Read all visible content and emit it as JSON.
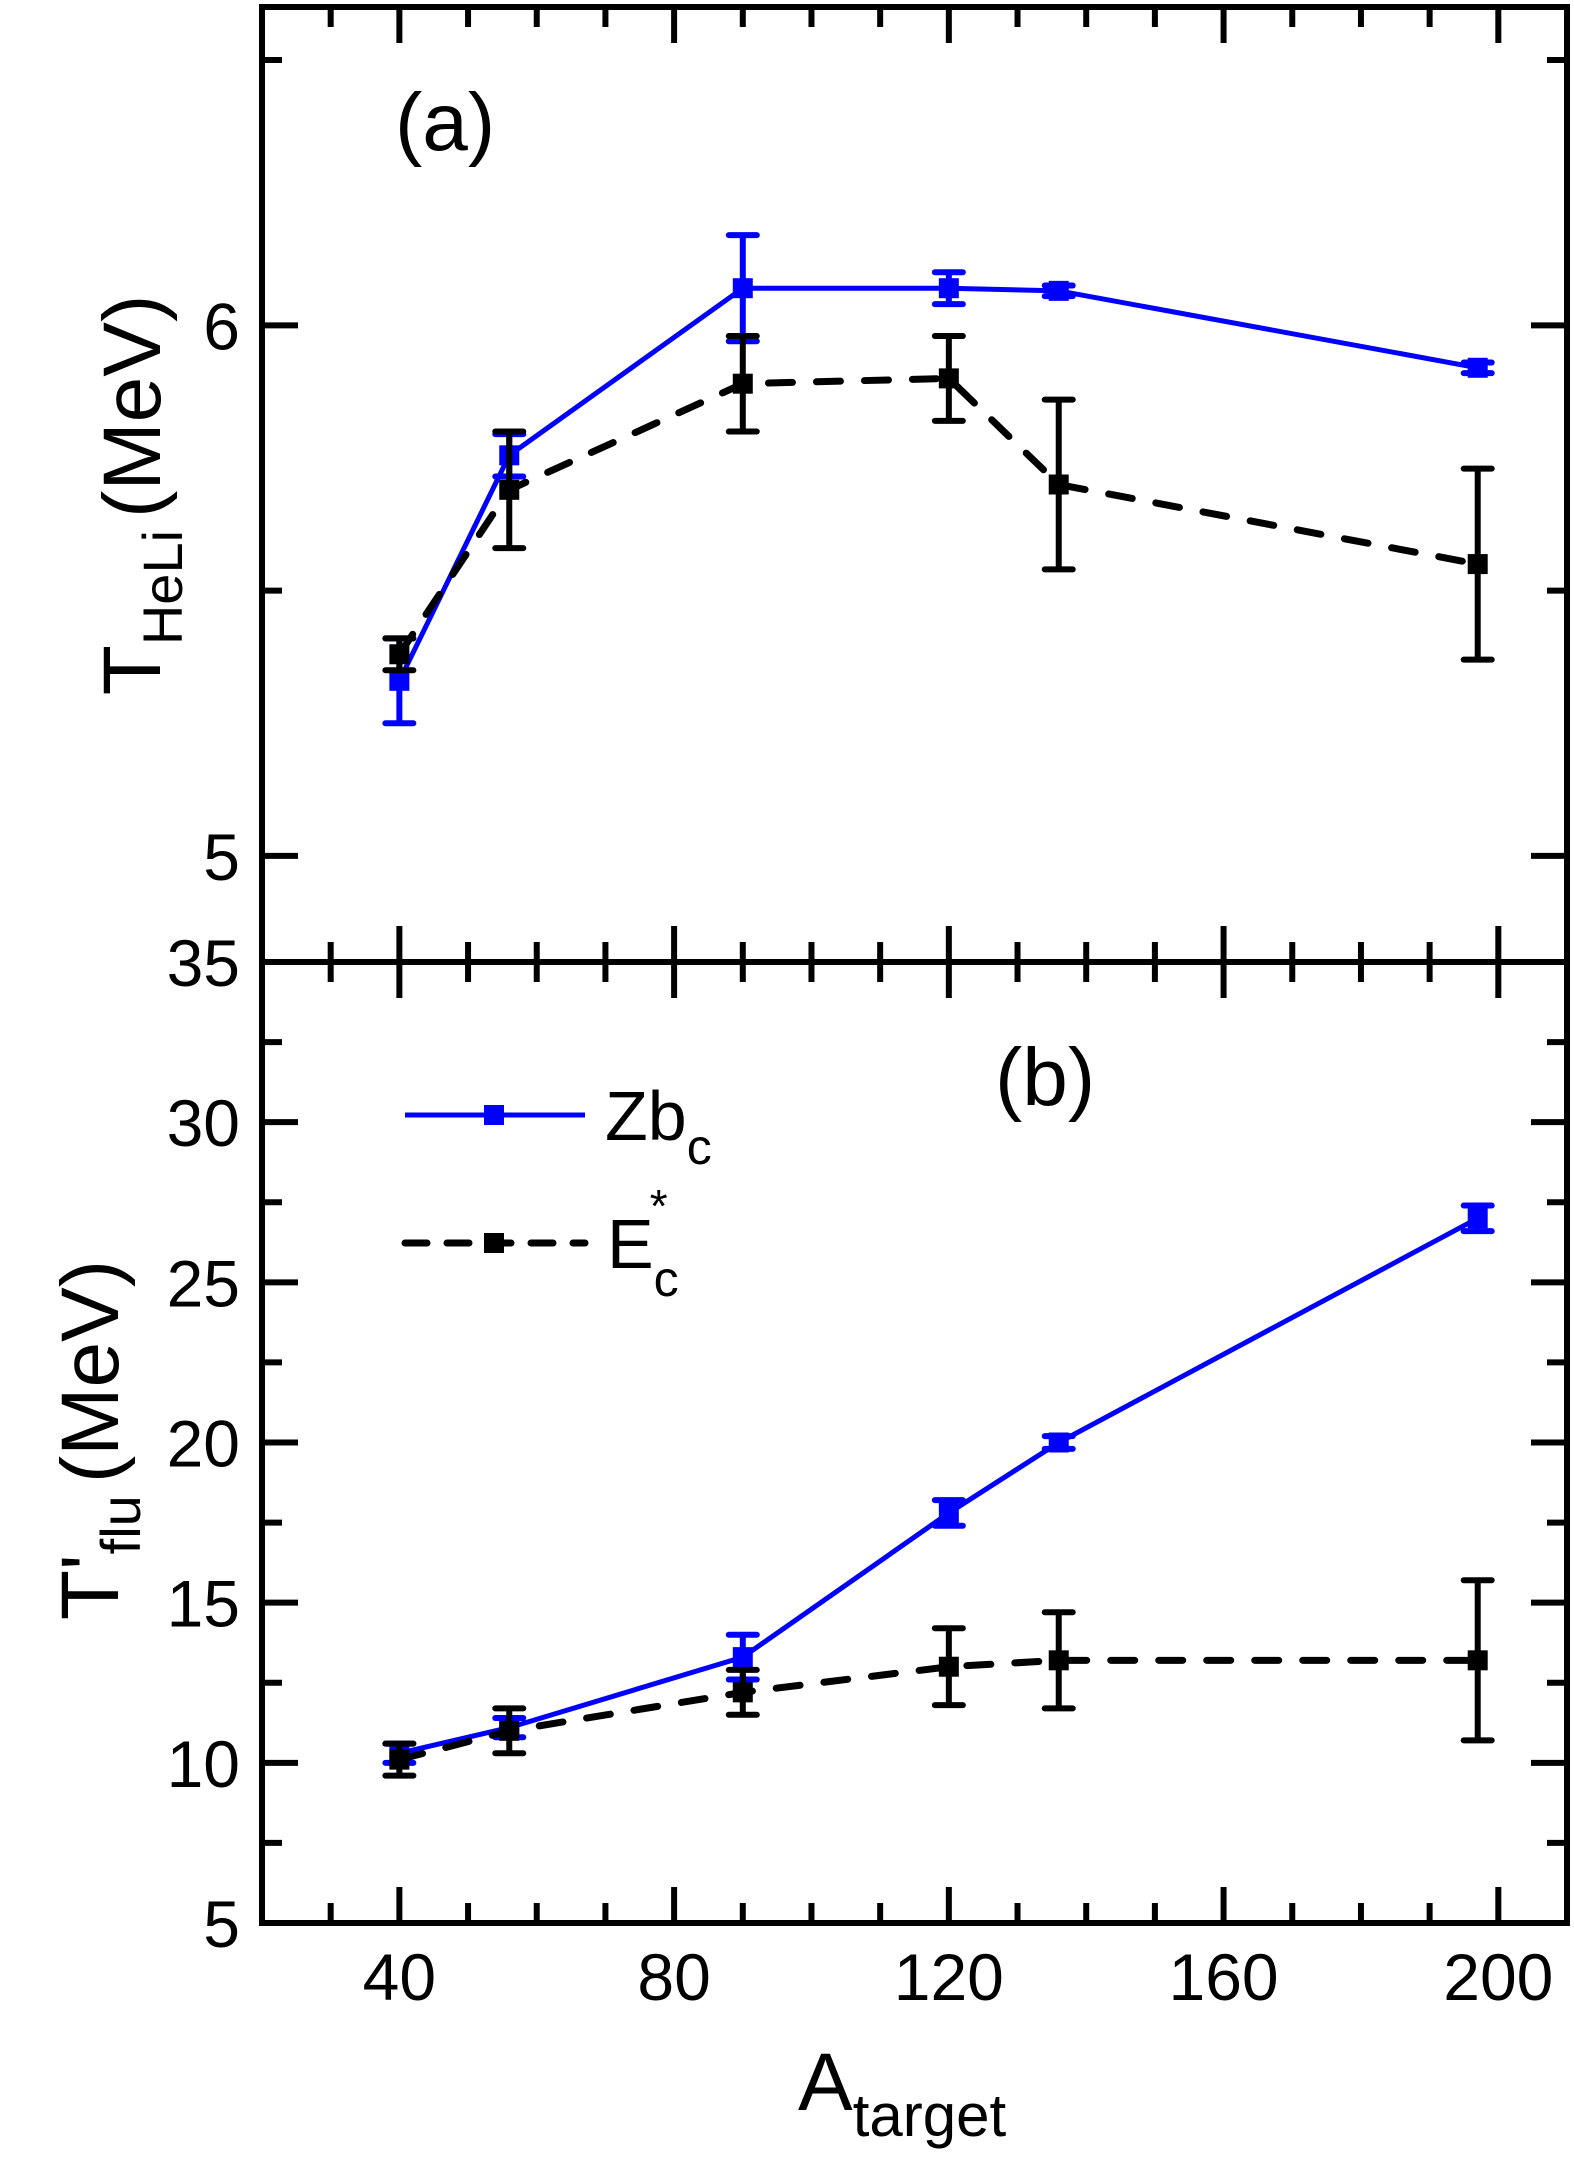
{
  "chart_data": [
    {
      "type": "line",
      "panel_label": "(a)",
      "ylabel": {
        "main": "T",
        "sub": "HeLi",
        "unit": "(MeV)"
      },
      "xlim": [
        20,
        210
      ],
      "ylim": [
        4.8,
        6.6
      ],
      "yticks": [
        5,
        6
      ],
      "yminor": [
        5.5,
        6.5
      ],
      "ytick_labels": [
        "5",
        "6"
      ],
      "grid": false,
      "series": [
        {
          "name": "Zbc",
          "color": "#0000ff",
          "linestyle": "solid",
          "x": [
            40,
            56,
            90,
            120,
            136,
            197
          ],
          "y": [
            5.33,
            5.755,
            6.07,
            6.07,
            6.065,
            5.92
          ],
          "yerr": [
            0.08,
            0.04,
            0.1,
            0.03,
            0.01,
            0.01
          ]
        },
        {
          "name": "E*c",
          "color": "#000000",
          "linestyle": "dashed",
          "x": [
            40,
            56,
            90,
            120,
            136,
            197
          ],
          "y": [
            5.38,
            5.69,
            5.89,
            5.9,
            5.7,
            5.55
          ],
          "yerr": [
            0.03,
            0.11,
            0.09,
            0.08,
            0.16,
            0.18
          ]
        }
      ]
    },
    {
      "type": "line",
      "panel_label": "(b)",
      "ylabel": {
        "main": "T'",
        "sub": "flu",
        "unit": "(MeV)"
      },
      "xlabel": {
        "main": "A",
        "sub": "target"
      },
      "xlim": [
        20,
        210
      ],
      "ylim": [
        5,
        35
      ],
      "xticks": [
        40,
        80,
        120,
        160,
        200
      ],
      "xtick_labels": [
        "40",
        "80",
        "120",
        "160",
        "200"
      ],
      "yticks": [
        5,
        10,
        15,
        20,
        25,
        30,
        35
      ],
      "ytick_labels": [
        "5",
        "10",
        "15",
        "20",
        "25",
        "30",
        "35"
      ],
      "grid": false,
      "legend": {
        "location": "upper-left",
        "entries": [
          {
            "label": "Zb",
            "sub": "c",
            "sup": "",
            "color": "#0000ff",
            "linestyle": "solid"
          },
          {
            "label": "E",
            "sub": "c",
            "sup": "*",
            "color": "#000000",
            "linestyle": "dashed"
          }
        ]
      },
      "series": [
        {
          "name": "Zbc",
          "color": "#0000ff",
          "linestyle": "solid",
          "x": [
            40,
            56,
            90,
            120,
            136,
            197
          ],
          "y": [
            10.3,
            11.1,
            13.3,
            17.8,
            20.0,
            27.0
          ],
          "yerr": [
            0.3,
            0.3,
            0.7,
            0.4,
            0.2,
            0.4
          ]
        },
        {
          "name": "E*c",
          "color": "#000000",
          "linestyle": "dashed",
          "x": [
            40,
            56,
            90,
            120,
            136,
            197
          ],
          "y": [
            10.1,
            11.0,
            12.2,
            13.0,
            13.2,
            13.2
          ],
          "yerr": [
            0.5,
            0.7,
            0.7,
            1.2,
            1.5,
            2.5
          ]
        }
      ]
    }
  ]
}
